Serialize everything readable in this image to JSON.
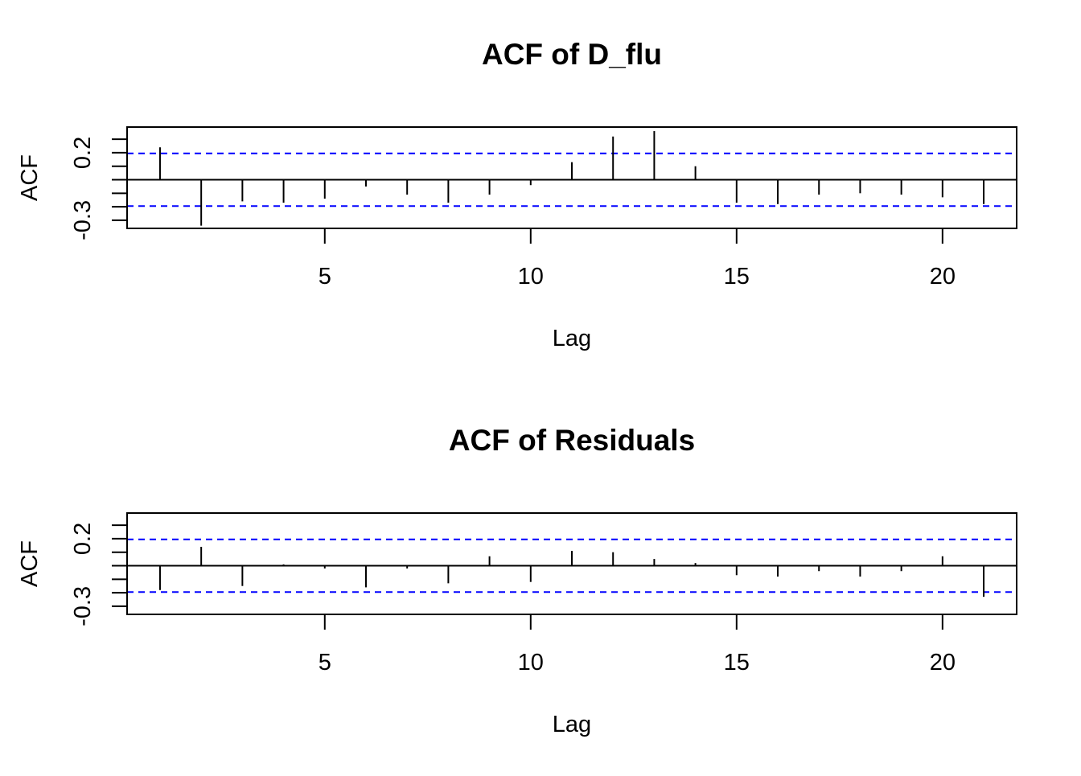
{
  "chart_data": [
    {
      "type": "bar",
      "subtype": "acf-spike",
      "title": "ACF of D_flu",
      "xlabel": "Lag",
      "ylabel": "ACF",
      "xlim": [
        0.2,
        21.8
      ],
      "ylim": [
        -0.36,
        0.39
      ],
      "x_ticks": [
        5,
        10,
        15,
        20
      ],
      "x_tick_labels": [
        "5",
        "10",
        "15",
        "20"
      ],
      "y_ticks": [
        -0.4,
        -0.3,
        -0.2,
        -0.1,
        0.0,
        0.1,
        0.2,
        0.3
      ],
      "y_tick_labels": [
        "",
        "-0.3",
        "",
        "",
        "",
        "",
        "0.2",
        ""
      ],
      "lags": [
        1,
        2,
        3,
        4,
        5,
        6,
        7,
        8,
        9,
        10,
        11,
        12,
        13,
        14,
        15,
        16,
        17,
        18,
        19,
        20,
        21
      ],
      "values": [
        0.24,
        -0.34,
        -0.16,
        -0.17,
        -0.14,
        -0.05,
        -0.11,
        -0.17,
        -0.11,
        -0.04,
        0.13,
        0.32,
        0.36,
        0.1,
        -0.17,
        -0.18,
        -0.11,
        -0.1,
        -0.11,
        -0.13,
        -0.18
      ],
      "confidence_bounds": [
        0.195,
        -0.195
      ],
      "confidence_color": "#0000ff",
      "spike_color": "#000000",
      "grid": false,
      "legend": "none"
    },
    {
      "type": "bar",
      "subtype": "acf-spike",
      "title": "ACF of Residuals",
      "xlabel": "Lag",
      "ylabel": "ACF",
      "xlim": [
        0.2,
        21.8
      ],
      "ylim": [
        -0.36,
        0.39
      ],
      "x_ticks": [
        5,
        10,
        15,
        20
      ],
      "x_tick_labels": [
        "5",
        "10",
        "15",
        "20"
      ],
      "y_ticks": [
        -0.4,
        -0.3,
        -0.2,
        -0.1,
        0.0,
        0.1,
        0.2,
        0.3
      ],
      "y_tick_labels": [
        "",
        "-0.3",
        "",
        "",
        "",
        "",
        "0.2",
        ""
      ],
      "lags": [
        1,
        2,
        3,
        4,
        5,
        6,
        7,
        8,
        9,
        10,
        11,
        12,
        13,
        14,
        15,
        16,
        17,
        18,
        19,
        20,
        21
      ],
      "values": [
        -0.18,
        0.14,
        -0.15,
        0.01,
        -0.02,
        -0.16,
        -0.02,
        -0.13,
        0.07,
        -0.12,
        0.11,
        0.1,
        0.05,
        0.02,
        -0.07,
        -0.08,
        -0.04,
        -0.08,
        -0.04,
        0.07,
        -0.23
      ],
      "confidence_bounds": [
        0.195,
        -0.195
      ],
      "confidence_color": "#0000ff",
      "spike_color": "#000000",
      "grid": false,
      "legend": "none"
    }
  ]
}
